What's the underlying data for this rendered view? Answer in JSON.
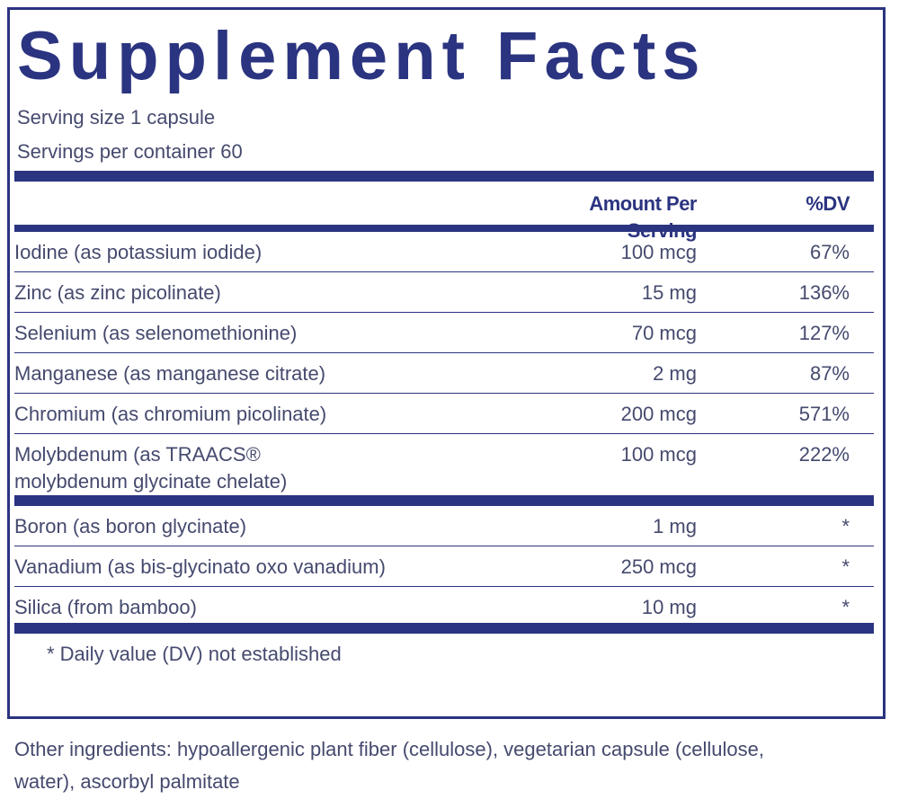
{
  "title": "Supplement Facts",
  "serving_size": "Serving size  1 capsule",
  "servings_per_container": "Servings per container  60",
  "header": {
    "amount": "Amount Per Serving",
    "dv": "%DV"
  },
  "groups": [
    [
      {
        "name": [
          "Iodine (as potassium iodide)"
        ],
        "amount": "100 mcg",
        "dv": "67%"
      },
      {
        "name": [
          "Zinc (as zinc picolinate)"
        ],
        "amount": "15 mg",
        "dv": "136%"
      },
      {
        "name": [
          "Selenium (as selenomethionine)"
        ],
        "amount": "70 mcg",
        "dv": "127%"
      },
      {
        "name": [
          "Manganese (as manganese citrate)"
        ],
        "amount": "2 mg",
        "dv": "87%"
      },
      {
        "name": [
          "Chromium (as chromium picolinate)"
        ],
        "amount": "200 mcg",
        "dv": "571%"
      },
      {
        "name": [
          "Molybdenum (as TRAACS®",
          "molybdenum glycinate chelate)"
        ],
        "amount": "100 mcg",
        "dv": "222%"
      }
    ],
    [
      {
        "name": [
          "Boron (as boron glycinate)"
        ],
        "amount": "1 mg",
        "dv": "*"
      },
      {
        "name": [
          "Vanadium (as bis-glycinato oxo vanadium)"
        ],
        "amount": "250 mcg",
        "dv": "*"
      },
      {
        "name": [
          "Silica (from bamboo)"
        ],
        "amount": "10 mg",
        "dv": "*"
      }
    ]
  ],
  "footnote": "* Daily value (DV) not established",
  "other_ingredients": "Other ingredients: hypoallergenic plant fiber (cellulose), vegetarian capsule (cellulose, water), ascorbyl palmitate"
}
